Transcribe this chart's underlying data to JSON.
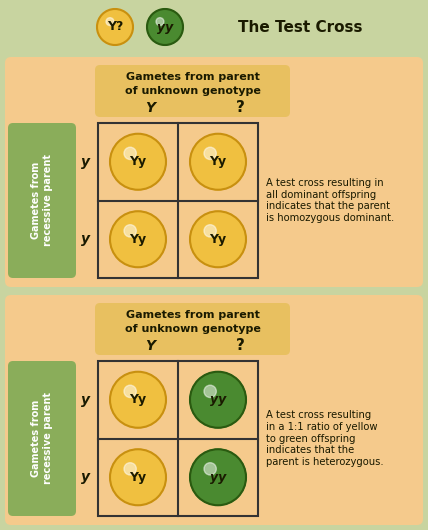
{
  "title": "The Test Cross",
  "bg_outer": "#c8d4a0",
  "bg_panel": "#f5ca8c",
  "bg_label_green": "#8aad5a",
  "yellow_ball": "#f0c040",
  "yellow_ball_edge": "#c89010",
  "yellow_ball_dark": "#a06800",
  "green_ball": "#4a8a30",
  "green_ball_edge": "#2a5a10",
  "text_dark": "#1a1a00",
  "grid_line": "#444444",
  "header_bg": "#e8c060",
  "desc1": "A test cross resulting in\nall dominant offspring\nindicates that the parent\nis homozygous dominant.",
  "desc2": "A test cross resulting\nin a 1:1 ratio of yellow\nto green offspring\nindicates that the\nparent is heterozygous.",
  "title_ball1_label": "Y?",
  "title_ball2_label": "yy",
  "side_label_line1": "Gametes from",
  "side_label_line2": "recessive parent",
  "header_line1": "Gametes from parent",
  "header_line2": "of unknown genotype",
  "col1_label": "Y",
  "col2_label": "?",
  "row_label": "y",
  "grid1_labels": [
    [
      "Yy",
      "Yy"
    ],
    [
      "Yy",
      "Yy"
    ]
  ],
  "grid1_colors": [
    [
      "yellow",
      "yellow"
    ],
    [
      "yellow",
      "yellow"
    ]
  ],
  "grid2_labels": [
    [
      "Yy",
      "yy"
    ],
    [
      "Yy",
      "yy"
    ]
  ],
  "grid2_colors": [
    [
      "yellow",
      "green"
    ],
    [
      "yellow",
      "green"
    ]
  ]
}
